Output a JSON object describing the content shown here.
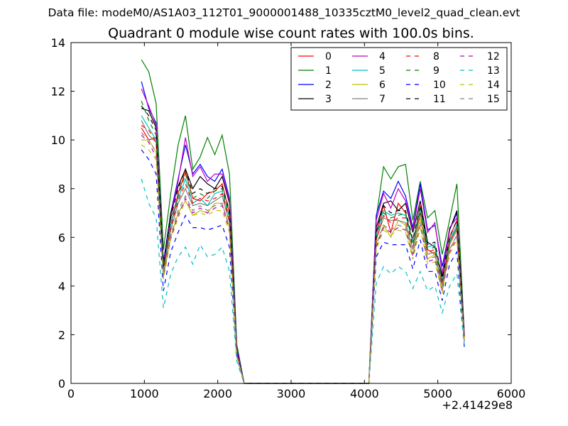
{
  "header": {
    "suptitle": "Data file: modeM0/AS1A03_112T01_9000001488_10335cztM0_level2_quad_clean.evt",
    "title": "Quadrant 0 module wise count rates with 100.0s bins.",
    "x_offset_label": "+2.41429e8"
  },
  "chart_data": {
    "type": "line",
    "title": "Quadrant 0 module wise count rates with 100.0s bins.",
    "xlabel": "",
    "ylabel": "",
    "x_offset": "+2.41429e8",
    "xlim": [
      0,
      6000
    ],
    "ylim": [
      0,
      14
    ],
    "xticks": [
      0,
      1000,
      2000,
      3000,
      4000,
      5000,
      6000
    ],
    "yticks": [
      0,
      2,
      4,
      6,
      8,
      10,
      12,
      14
    ],
    "grid": false,
    "legend": {
      "placement": "top-right",
      "columns": 4
    },
    "x": [
      960,
      1060,
      1160,
      1260,
      1360,
      1460,
      1560,
      1660,
      1760,
      1860,
      1960,
      2060,
      2160,
      2260,
      2360,
      2460,
      2560,
      2660,
      2760,
      2860,
      2960,
      3060,
      3160,
      3260,
      3360,
      3460,
      3560,
      3660,
      3760,
      3860,
      3960,
      4060,
      4160,
      4260,
      4360,
      4460,
      4560,
      4660,
      4760,
      4860,
      4960,
      5060,
      5160,
      5260,
      5360
    ],
    "series": [
      {
        "name": "0",
        "color": "#ff0000",
        "dash": "solid",
        "values": [
          10.5,
          10.0,
          10.1,
          4.5,
          6.5,
          7.8,
          8.7,
          7.6,
          7.5,
          7.8,
          7.9,
          8.2,
          7.0,
          1.2,
          0,
          0,
          0,
          0,
          0,
          0,
          0,
          0,
          0,
          0,
          0,
          0,
          0,
          0,
          0,
          0,
          0,
          0,
          6.2,
          7.3,
          6.2,
          7.4,
          7.0,
          5.8,
          7.3,
          5.5,
          5.3,
          4.1,
          6.0,
          6.7,
          2.0
        ]
      },
      {
        "name": "1",
        "color": "#008000",
        "dash": "solid",
        "values": [
          13.3,
          12.8,
          11.5,
          5.5,
          7.8,
          9.8,
          11.0,
          8.8,
          9.3,
          10.1,
          9.4,
          10.2,
          8.6,
          1.6,
          0,
          0,
          0,
          0,
          0,
          0,
          0,
          0,
          0,
          0,
          0,
          0,
          0,
          0,
          0,
          0,
          0,
          0,
          6.8,
          8.9,
          8.4,
          8.9,
          9.0,
          6.7,
          8.3,
          6.8,
          7.1,
          5.3,
          6.7,
          8.2,
          2.1
        ]
      },
      {
        "name": "2",
        "color": "#0000ff",
        "dash": "solid",
        "values": [
          12.4,
          11.3,
          10.7,
          5.0,
          7.0,
          8.4,
          9.8,
          8.6,
          9.0,
          8.5,
          8.3,
          8.8,
          7.6,
          1.5,
          0,
          0,
          0,
          0,
          0,
          0,
          0,
          0,
          0,
          0,
          0,
          0,
          0,
          0,
          0,
          0,
          0,
          0,
          6.9,
          7.9,
          7.6,
          8.3,
          7.7,
          6.4,
          8.2,
          6.3,
          6.5,
          4.8,
          6.3,
          7.0,
          2.0
        ]
      },
      {
        "name": "3",
        "color": "#000000",
        "dash": "solid",
        "values": [
          11.3,
          11.2,
          10.5,
          4.8,
          7.0,
          8.1,
          8.8,
          8.0,
          8.5,
          8.2,
          8.0,
          8.5,
          7.4,
          1.4,
          0,
          0,
          0,
          0,
          0,
          0,
          0,
          0,
          0,
          0,
          0,
          0,
          0,
          0,
          0,
          0,
          0,
          0,
          6.4,
          7.4,
          7.5,
          7.1,
          7.4,
          6.2,
          7.5,
          5.8,
          5.6,
          4.4,
          6.3,
          7.1,
          1.9
        ]
      },
      {
        "name": "4",
        "color": "#bf00bf",
        "dash": "solid",
        "values": [
          12.1,
          11.4,
          10.6,
          4.9,
          6.8,
          8.3,
          10.1,
          8.5,
          8.9,
          8.3,
          8.6,
          8.6,
          7.5,
          1.4,
          0,
          0,
          0,
          0,
          0,
          0,
          0,
          0,
          0,
          0,
          0,
          0,
          0,
          0,
          0,
          0,
          0,
          0,
          6.7,
          7.8,
          7.2,
          8.0,
          7.5,
          6.3,
          8.0,
          6.2,
          6.6,
          4.5,
          6.4,
          6.8,
          2.0
        ]
      },
      {
        "name": "5",
        "color": "#00bfbf",
        "dash": "solid",
        "values": [
          11.0,
          10.5,
          10.0,
          4.6,
          6.5,
          7.6,
          8.4,
          7.4,
          7.6,
          7.3,
          7.8,
          7.9,
          6.8,
          1.3,
          0,
          0,
          0,
          0,
          0,
          0,
          0,
          0,
          0,
          0,
          0,
          0,
          0,
          0,
          0,
          0,
          0,
          0,
          6.1,
          7.1,
          6.9,
          7.0,
          6.9,
          5.8,
          7.2,
          5.6,
          5.7,
          4.2,
          5.9,
          6.5,
          1.8
        ]
      },
      {
        "name": "6",
        "color": "#bfbf00",
        "dash": "solid",
        "values": [
          10.0,
          10.0,
          9.5,
          4.4,
          6.0,
          7.0,
          7.5,
          6.9,
          7.1,
          7.0,
          7.4,
          7.4,
          6.4,
          1.2,
          0,
          0,
          0,
          0,
          0,
          0,
          0,
          0,
          0,
          0,
          0,
          0,
          0,
          0,
          0,
          0,
          0,
          0,
          5.7,
          6.5,
          6.0,
          6.7,
          6.5,
          5.3,
          6.8,
          5.1,
          5.3,
          3.8,
          5.5,
          6.1,
          1.8
        ]
      },
      {
        "name": "7",
        "color": "#808080",
        "dash": "solid",
        "values": [
          10.8,
          10.2,
          9.9,
          4.6,
          6.3,
          7.4,
          8.0,
          7.3,
          7.4,
          7.3,
          7.5,
          7.7,
          6.6,
          1.2,
          0,
          0,
          0,
          0,
          0,
          0,
          0,
          0,
          0,
          0,
          0,
          0,
          0,
          0,
          0,
          0,
          0,
          0,
          5.9,
          6.8,
          6.7,
          6.7,
          6.6,
          5.5,
          7.0,
          5.3,
          5.4,
          4.0,
          5.7,
          6.3,
          1.8
        ]
      },
      {
        "name": "8",
        "color": "#ff0000",
        "dash": "dashed",
        "values": [
          10.6,
          10.4,
          9.9,
          4.7,
          6.4,
          7.5,
          8.2,
          7.4,
          7.6,
          7.5,
          7.6,
          7.8,
          6.7,
          1.3,
          0,
          0,
          0,
          0,
          0,
          0,
          0,
          0,
          0,
          0,
          0,
          0,
          0,
          0,
          0,
          0,
          0,
          0,
          5.9,
          6.9,
          6.6,
          6.8,
          6.8,
          5.6,
          7.0,
          5.4,
          5.5,
          4.1,
          5.8,
          6.4,
          1.9
        ]
      },
      {
        "name": "9",
        "color": "#008000",
        "dash": "dashed",
        "values": [
          11.6,
          10.8,
          10.2,
          4.8,
          6.7,
          7.7,
          8.6,
          7.6,
          7.8,
          7.6,
          7.9,
          8.0,
          6.9,
          1.3,
          0,
          0,
          0,
          0,
          0,
          0,
          0,
          0,
          0,
          0,
          0,
          0,
          0,
          0,
          0,
          0,
          0,
          0,
          6.0,
          7.0,
          6.8,
          6.9,
          7.0,
          5.7,
          7.1,
          5.5,
          5.6,
          4.2,
          5.8,
          6.4,
          1.8
        ]
      },
      {
        "name": "10",
        "color": "#0000ff",
        "dash": "dashed",
        "values": [
          9.6,
          9.2,
          8.6,
          3.8,
          5.4,
          6.2,
          6.9,
          6.4,
          6.4,
          6.3,
          6.4,
          6.5,
          5.6,
          1.1,
          0,
          0,
          0,
          0,
          0,
          0,
          0,
          0,
          0,
          0,
          0,
          0,
          0,
          0,
          0,
          0,
          0,
          0,
          5.2,
          5.8,
          5.7,
          5.7,
          5.7,
          4.7,
          5.9,
          4.6,
          4.6,
          3.4,
          4.9,
          5.4,
          1.5
        ]
      },
      {
        "name": "11",
        "color": "#000000",
        "dash": "dashed",
        "values": [
          11.4,
          11.0,
          10.4,
          4.8,
          6.8,
          8.0,
          8.8,
          7.8,
          8.0,
          7.8,
          8.0,
          8.1,
          7.1,
          1.3,
          0,
          0,
          0,
          0,
          0,
          0,
          0,
          0,
          0,
          0,
          0,
          0,
          0,
          0,
          0,
          0,
          0,
          0,
          6.2,
          7.3,
          7.0,
          7.1,
          7.1,
          5.9,
          7.3,
          5.7,
          5.8,
          4.3,
          6.0,
          6.7,
          1.9
        ]
      },
      {
        "name": "12",
        "color": "#bf00bf",
        "dash": "dashed",
        "values": [
          10.2,
          9.9,
          9.3,
          4.3,
          6.0,
          6.9,
          7.6,
          7.0,
          7.2,
          7.0,
          7.2,
          7.3,
          6.3,
          1.2,
          0,
          0,
          0,
          0,
          0,
          0,
          0,
          0,
          0,
          0,
          0,
          0,
          0,
          0,
          0,
          0,
          0,
          0,
          5.6,
          6.4,
          6.2,
          6.4,
          6.3,
          5.2,
          6.5,
          5.0,
          5.1,
          3.8,
          5.4,
          6.0,
          1.7
        ]
      },
      {
        "name": "13",
        "color": "#00bfbf",
        "dash": "dashed",
        "values": [
          8.4,
          7.4,
          6.8,
          3.1,
          4.5,
          5.2,
          5.6,
          4.9,
          5.7,
          5.2,
          5.3,
          5.6,
          4.6,
          0.9,
          0,
          0,
          0,
          0,
          0,
          0,
          0,
          0,
          0,
          0,
          0,
          0,
          0,
          0,
          0,
          0,
          0,
          0,
          4.1,
          4.8,
          4.5,
          4.8,
          4.6,
          3.9,
          4.6,
          3.8,
          4.0,
          2.9,
          4.0,
          4.5,
          1.6
        ]
      },
      {
        "name": "14",
        "color": "#bfbf00",
        "dash": "dashed",
        "values": [
          9.8,
          9.6,
          9.2,
          4.3,
          5.9,
          6.8,
          7.5,
          6.9,
          7.0,
          6.9,
          7.1,
          7.1,
          6.2,
          1.1,
          0,
          0,
          0,
          0,
          0,
          0,
          0,
          0,
          0,
          0,
          0,
          0,
          0,
          0,
          0,
          0,
          0,
          0,
          5.5,
          6.3,
          6.1,
          6.3,
          6.2,
          5.1,
          6.4,
          4.9,
          5.0,
          3.7,
          5.3,
          5.9,
          1.7
        ]
      },
      {
        "name": "15",
        "color": "#808080",
        "dash": "dashed",
        "values": [
          10.3,
          10.0,
          9.5,
          4.4,
          6.1,
          7.1,
          7.7,
          7.1,
          7.3,
          7.1,
          7.3,
          7.4,
          6.4,
          1.2,
          0,
          0,
          0,
          0,
          0,
          0,
          0,
          0,
          0,
          0,
          0,
          0,
          0,
          0,
          0,
          0,
          0,
          0,
          5.7,
          6.5,
          6.3,
          6.5,
          6.4,
          5.3,
          6.6,
          5.1,
          5.2,
          3.9,
          5.5,
          6.1,
          1.7
        ]
      }
    ]
  }
}
